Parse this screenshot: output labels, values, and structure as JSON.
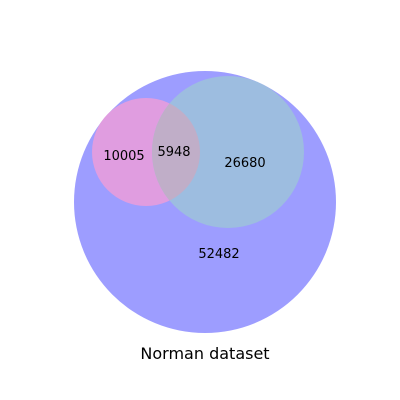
{
  "diagram": {
    "type": "venn",
    "caption": "Norman dataset",
    "regions": {
      "outer_only": "52482",
      "left_only": "10005",
      "intersection": "5948",
      "right_only": "26680"
    },
    "colors": {
      "outer": "#9d9dff",
      "left": "#e09de0",
      "right": "#9dbde0",
      "intersection": "#c0aec8"
    }
  }
}
